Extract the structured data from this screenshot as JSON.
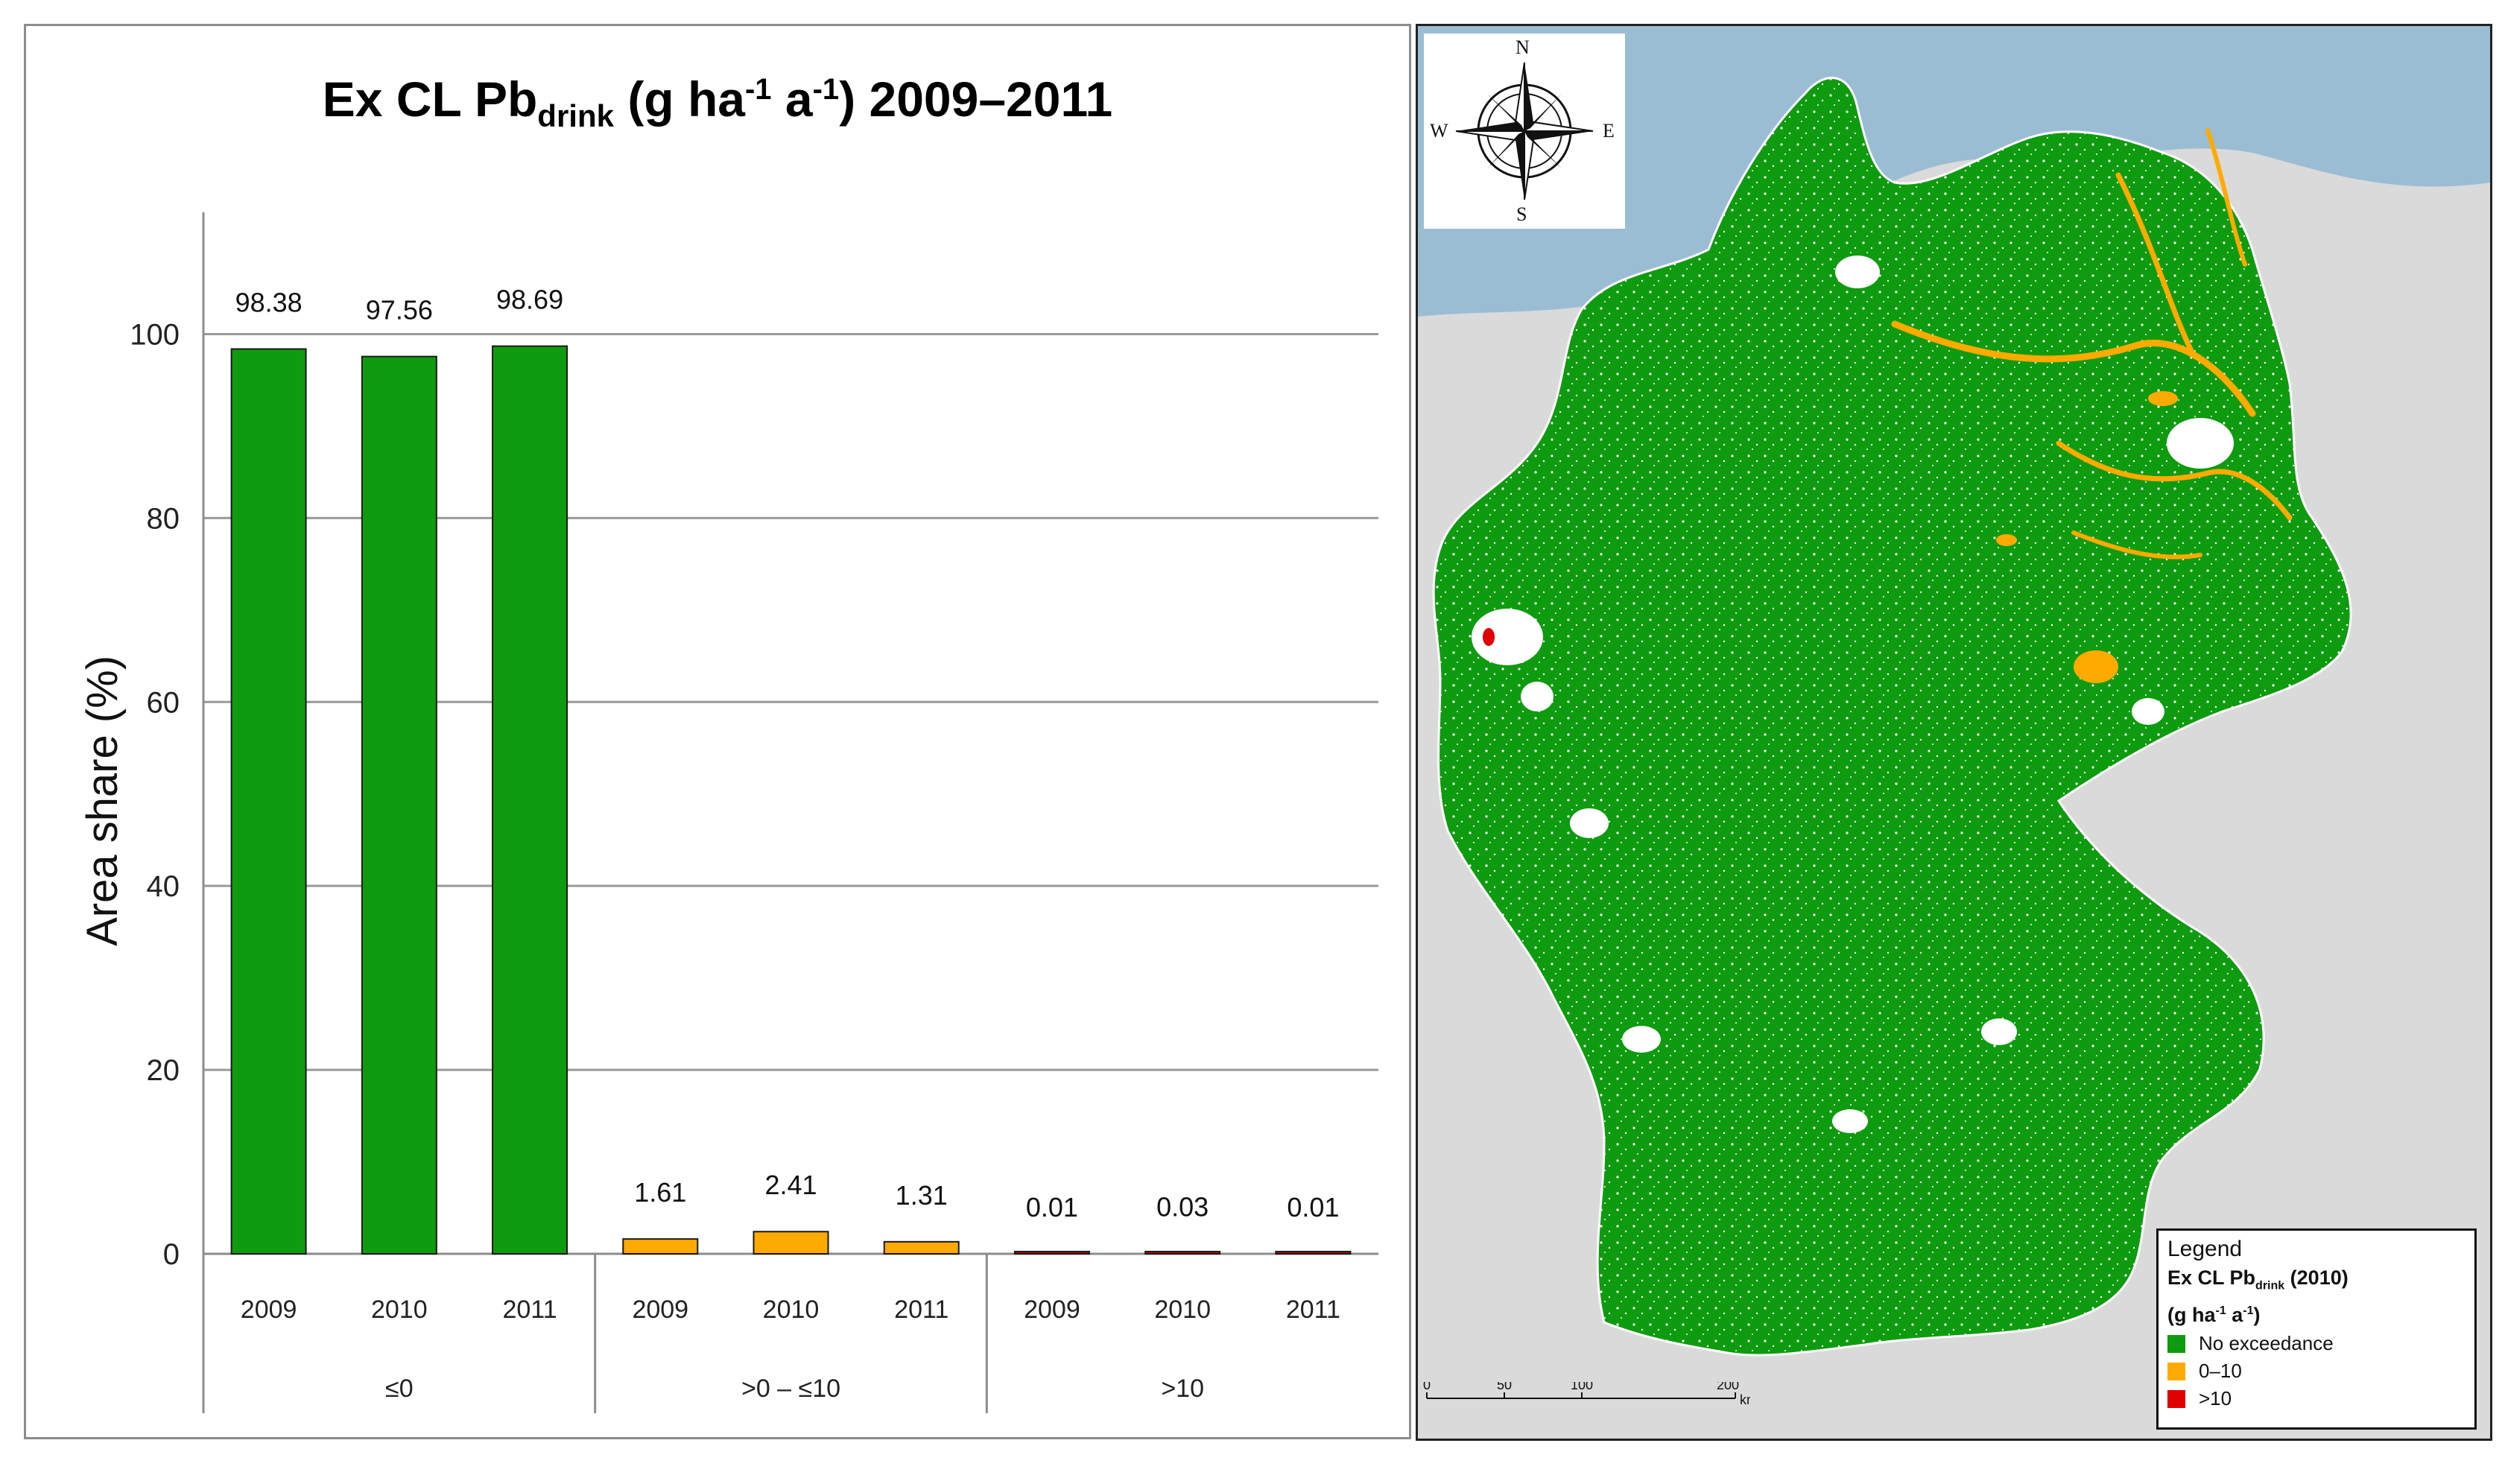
{
  "chart_title": {
    "prefix": "Ex CL Pb",
    "subscript": "drink",
    "unit_open": " (g ha",
    "sup1": "-1",
    "unit_mid": " a",
    "sup2": "-1",
    "suffix": ") 2009–2011"
  },
  "chart_data": {
    "type": "bar",
    "ylabel": "Area share (%)",
    "ylim": [
      0,
      110
    ],
    "yticks": [
      0,
      20,
      40,
      60,
      80,
      100
    ],
    "grid": true,
    "groups": [
      {
        "label": "≤0",
        "color": "#0f9b0f",
        "categories": [
          "2009",
          "2010",
          "2011"
        ],
        "values": [
          98.38,
          97.56,
          98.69
        ],
        "labels": [
          "98.38",
          "97.56",
          "98.69"
        ]
      },
      {
        "label": ">0 – ≤10",
        "color": "#ffaa00",
        "categories": [
          "2009",
          "2010",
          "2011"
        ],
        "values": [
          1.61,
          2.41,
          1.31
        ],
        "labels": [
          "1.61",
          "2.41",
          "1.31"
        ]
      },
      {
        "label": ">10",
        "color": "#e00000",
        "categories": [
          "2009",
          "2010",
          "2011"
        ],
        "values": [
          0.01,
          0.03,
          0.01
        ],
        "labels": [
          "0.01",
          "0.03",
          "0.01"
        ]
      }
    ]
  },
  "map": {
    "compass": {
      "n": "N",
      "s": "S",
      "e": "E",
      "w": "W"
    },
    "legend": {
      "title": "Legend",
      "heading_prefix": "Ex CL Pb",
      "heading_sub": "drink",
      "heading_suffix": " (2010)",
      "heading_unit_open": "(g ha",
      "heading_sup1": "-1",
      "heading_unit_mid": " a",
      "heading_sup2": "-1",
      "heading_unit_close": ")",
      "items": [
        {
          "label": "No exceedance",
          "color": "#0f9b0f"
        },
        {
          "label": "0–10",
          "color": "#ffaa00"
        },
        {
          "label": ">10",
          "color": "#e00000"
        }
      ]
    },
    "scale": {
      "ticks": [
        "0",
        "50",
        "100",
        "200"
      ],
      "unit": "km"
    },
    "colors": {
      "land": "#0f9b0f",
      "sea": "#9bbdd3",
      "neighbor": "#d8d8d8",
      "hotspot": "#ffaa00",
      "red": "#e00000"
    }
  }
}
